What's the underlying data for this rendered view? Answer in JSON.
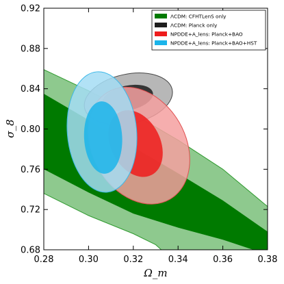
{
  "chart_data": {
    "type": "contour",
    "xlabel": "Ω_m",
    "ylabel": "σ_8",
    "xlim": [
      0.28,
      0.38
    ],
    "ylim": [
      0.68,
      0.92
    ],
    "xticks": [
      0.28,
      0.3,
      0.32,
      0.34,
      0.36,
      0.38
    ],
    "yticks": [
      0.68,
      0.72,
      0.76,
      0.8,
      0.84,
      0.88,
      0.92
    ],
    "grid": false,
    "legend_position": "top-right",
    "legend": [
      {
        "label": "ΛCDM: CFHTLenS only",
        "color": "#007a00"
      },
      {
        "label": "ΛCDM: Planck only",
        "color": "#1e1e1e"
      },
      {
        "label": "NPDDE+A_lens: Planck+BAO",
        "color": "#ee1c1c"
      },
      {
        "label": "NPDDE+A_lens: Planck+BAO+HST",
        "color": "#1bb4ea"
      }
    ],
    "series": [
      {
        "name": "ΛCDM: CFHTLenS only",
        "kind": "band",
        "inner_color": "#007a00",
        "outer_color": "#8ec98e",
        "outer_edge": "#2f9a2f",
        "contour_95": {
          "upper": [
            [
              0.28,
              0.859
            ],
            [
              0.3,
              0.838
            ],
            [
              0.32,
              0.815
            ],
            [
              0.34,
              0.789
            ],
            [
              0.36,
              0.76
            ],
            [
              0.38,
              0.723
            ]
          ],
          "lower": [
            [
              0.28,
              0.736
            ],
            [
              0.3,
              0.714
            ],
            [
              0.32,
              0.696
            ],
            [
              0.33,
              0.685
            ],
            [
              0.3325,
              0.68
            ]
          ]
        },
        "contour_68": {
          "upper": [
            [
              0.28,
              0.835
            ],
            [
              0.3,
              0.809
            ],
            [
              0.32,
              0.782
            ],
            [
              0.34,
              0.756
            ],
            [
              0.36,
              0.729
            ],
            [
              0.38,
              0.698
            ]
          ],
          "lower": [
            [
              0.28,
              0.76
            ],
            [
              0.3,
              0.737
            ],
            [
              0.32,
              0.716
            ],
            [
              0.34,
              0.702
            ],
            [
              0.36,
              0.69
            ],
            [
              0.3736,
              0.68
            ]
          ]
        }
      },
      {
        "name": "ΛCDM: Planck only",
        "kind": "ellipse",
        "inner_color": "#1e1e1e",
        "outer_color": "#aaaaaa",
        "outer_edge": "#444444",
        "ellipse_95": {
          "cx": 0.3178,
          "cy": 0.83,
          "rx": 0.02,
          "ry": 0.0245,
          "angle": -12
        },
        "ellipse_68": {
          "cx": 0.3175,
          "cy": 0.8308,
          "rx": 0.0115,
          "ry": 0.0123,
          "angle": -12
        }
      },
      {
        "name": "NPDDE+A_lens: Planck+BAO",
        "kind": "ellipse",
        "inner_color": "#ee1c1c",
        "outer_color": "#f4a0a0",
        "outer_edge": "#e05050",
        "ellipse_95": {
          "cx": 0.3225,
          "cy": 0.7835,
          "rx": 0.0208,
          "ry": 0.0615,
          "angle": -30
        },
        "ellipse_68": {
          "cx": 0.321,
          "cy": 0.7855,
          "rx": 0.011,
          "ry": 0.035,
          "angle": -27
        }
      },
      {
        "name": "NPDDE+A_lens: Planck+BAO+HST",
        "kind": "ellipse",
        "inner_color": "#1bb4ea",
        "outer_color": "#a5ddf5",
        "outer_edge": "#3cb8e8",
        "ellipse_95": {
          "cx": 0.306,
          "cy": 0.797,
          "rx": 0.0155,
          "ry": 0.06,
          "angle": -5
        },
        "ellipse_68": {
          "cx": 0.3065,
          "cy": 0.7915,
          "rx": 0.0085,
          "ry": 0.036,
          "angle": -3
        }
      }
    ]
  }
}
